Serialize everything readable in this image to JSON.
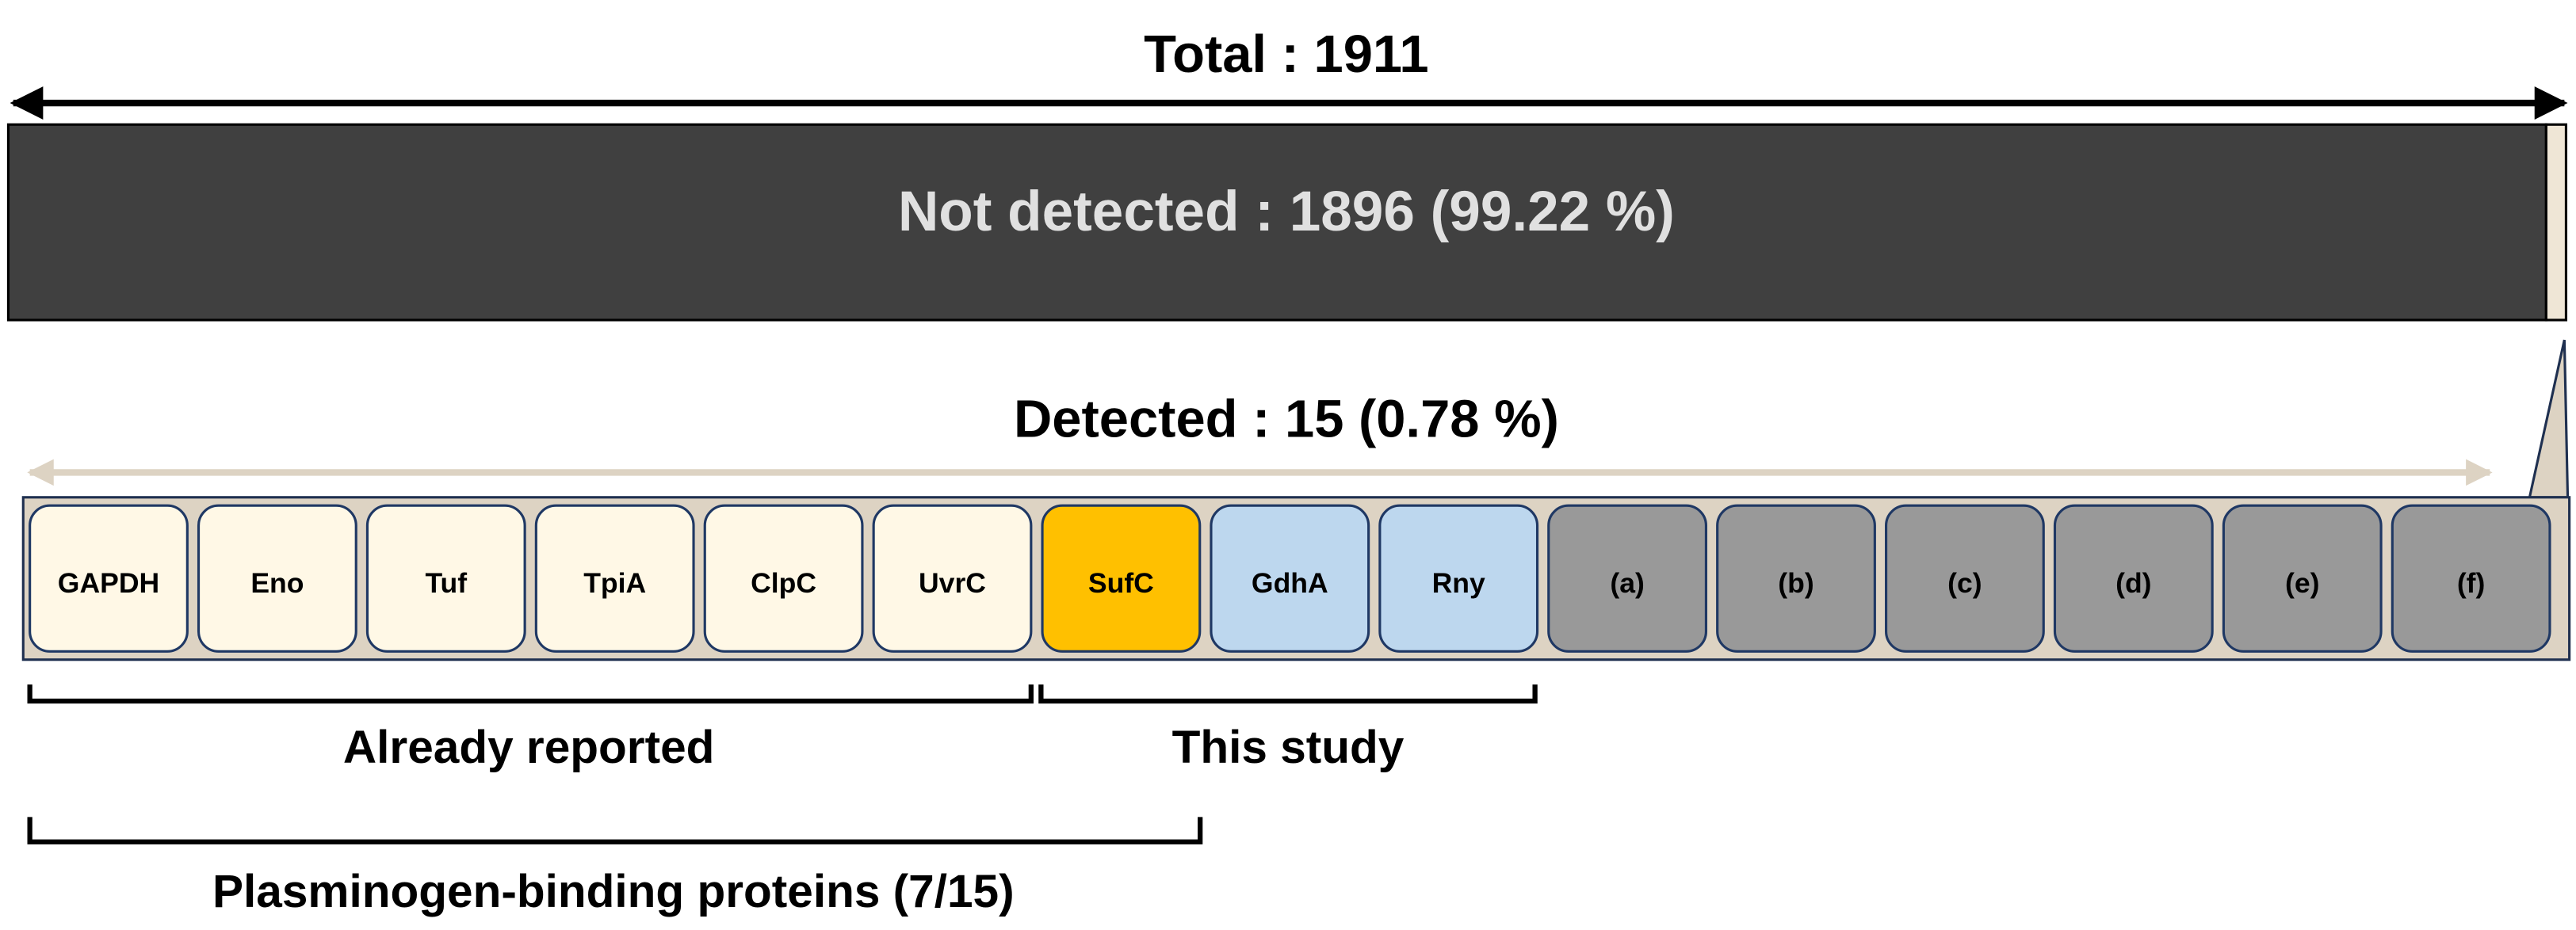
{
  "total": {
    "label": "Total : 1911"
  },
  "not_detected": {
    "label": "Not detected : 1896 (99.22 %)"
  },
  "detected": {
    "label": "Detected : 15 (0.78 %)",
    "proteins": [
      "GAPDH",
      "Eno",
      "Tuf",
      "TpiA",
      "ClpC",
      "UvrC",
      "SufC",
      "GdhA",
      "Rny",
      "(a)",
      "(b)",
      "(c)",
      "(d)",
      "(e)",
      "(f)"
    ]
  },
  "brackets": {
    "already_reported": "Already reported",
    "this_study": "This study",
    "plasminogen_binding": "Plasminogen-binding proteins (7/15)"
  }
}
